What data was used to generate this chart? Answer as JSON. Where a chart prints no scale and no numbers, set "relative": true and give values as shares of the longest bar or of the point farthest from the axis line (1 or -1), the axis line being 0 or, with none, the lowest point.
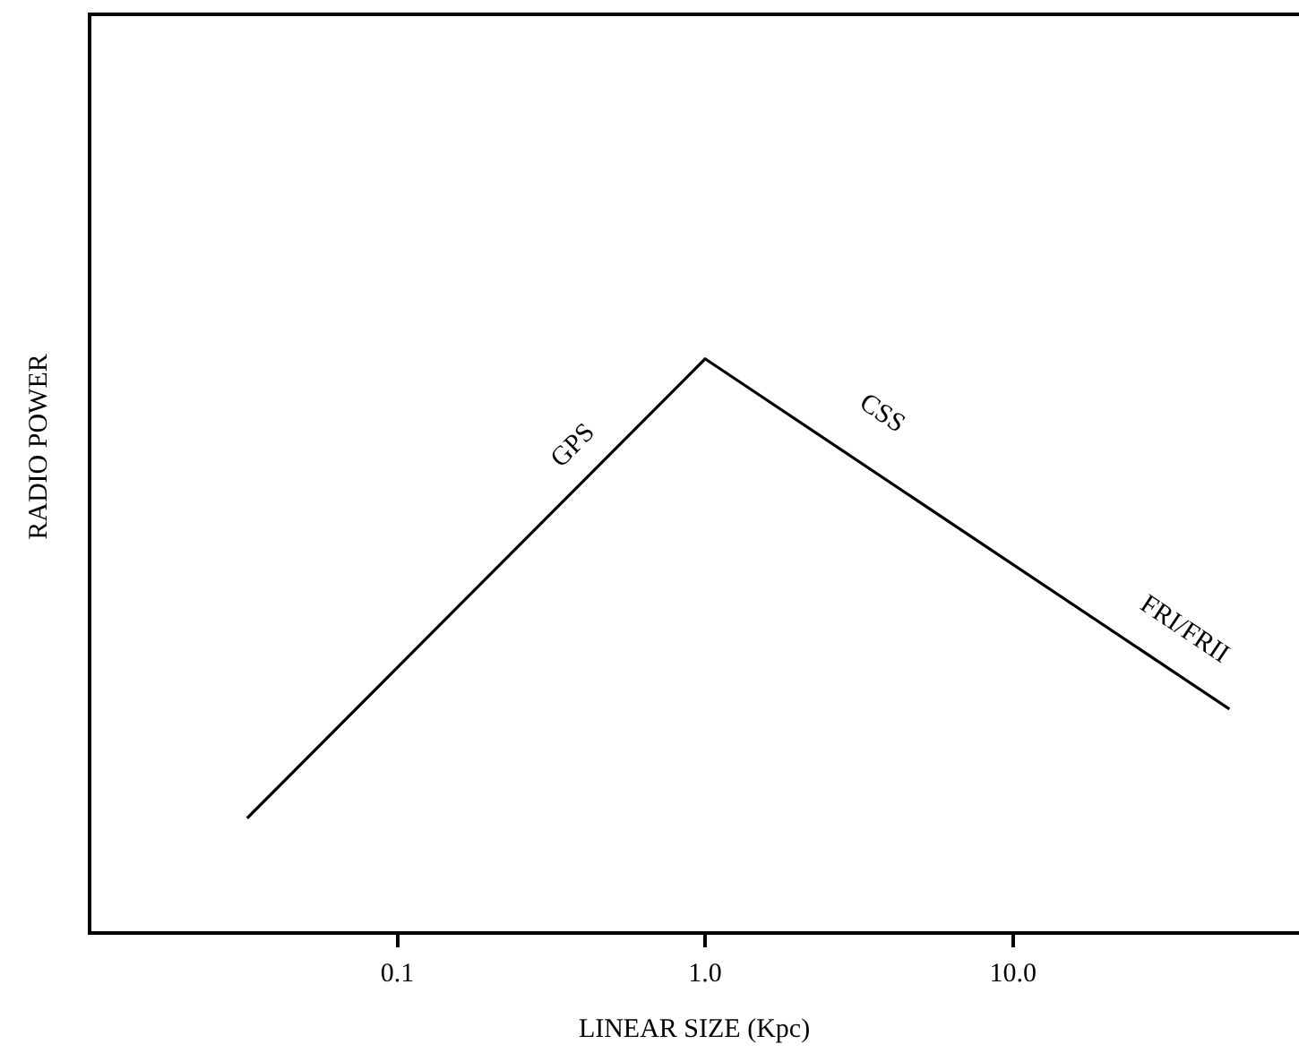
{
  "chart_data": {
    "type": "line",
    "xlabel": "LINEAR SIZE (Kpc)",
    "ylabel": "RADIO POWER",
    "x": [
      0.0325,
      1.0,
      50.5
    ],
    "relative": true,
    "log": "x",
    "series": [
      {
        "color": "#000000",
        "values": [
          0.2,
          1,
          0.39
        ]
      }
    ],
    "xlim": [
      0.01,
      85
    ],
    "xticks": [
      {
        "value": 0.1,
        "label": "0.1"
      },
      {
        "value": 1,
        "label": "1.0"
      },
      {
        "value": 10,
        "label": "10.0"
      }
    ],
    "annotations": [
      "GPS",
      "CSS",
      "FRI/FRII"
    ],
    "grid": false,
    "legend": false,
    "marker": "none",
    "line_style": "solid"
  }
}
